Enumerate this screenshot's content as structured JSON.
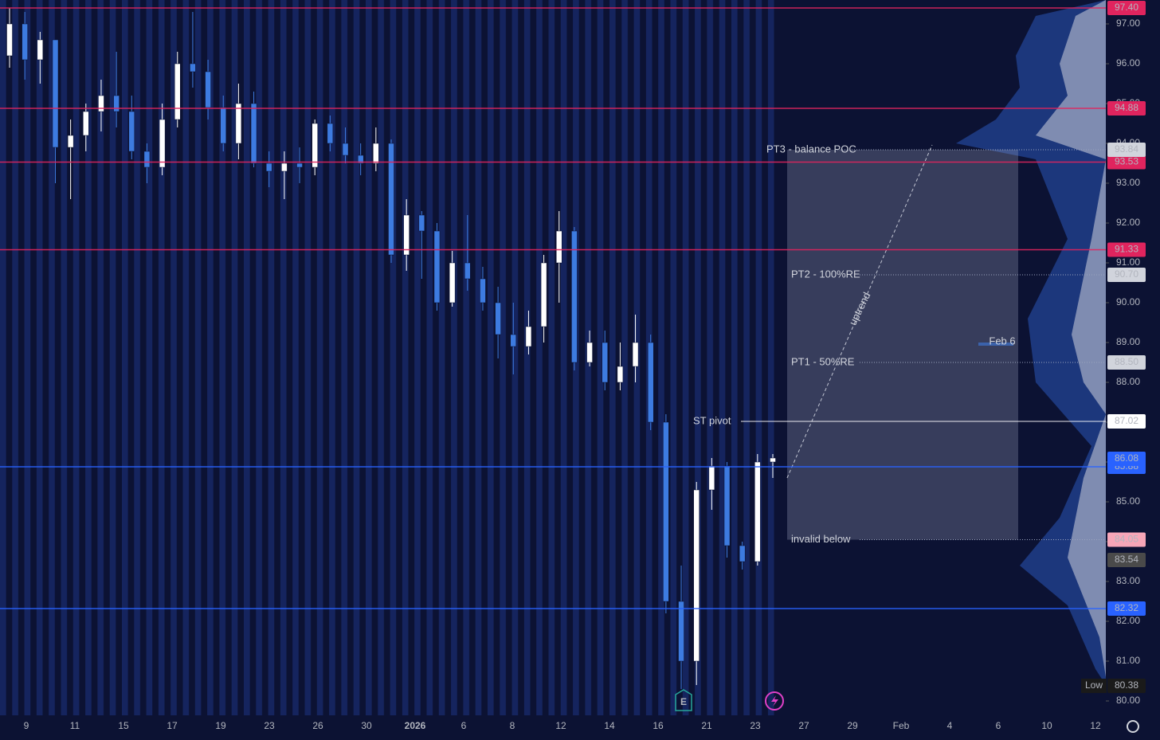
{
  "chart_data": {
    "type": "candlestick",
    "up_color": "#ffffff",
    "down_color": "#3d7be0",
    "ylim": [
      79.64,
      97.6
    ],
    "yticks": [
      {
        "value": 80,
        "label": "80.00"
      },
      {
        "value": 81,
        "label": "81.00"
      },
      {
        "value": 82,
        "label": "82.00"
      },
      {
        "value": 83,
        "label": "83.00"
      },
      {
        "value": 84,
        "label": "84.00"
      },
      {
        "value": 85,
        "label": "85.00"
      },
      {
        "value": 86,
        "label": "86.00"
      },
      {
        "value": 87,
        "label": "87.00"
      },
      {
        "value": 88,
        "label": "88.00"
      },
      {
        "value": 89,
        "label": "89.00"
      },
      {
        "value": 90,
        "label": "90.00"
      },
      {
        "value": 91,
        "label": "91.00"
      },
      {
        "value": 92,
        "label": "92.00"
      },
      {
        "value": 93,
        "label": "93.00"
      },
      {
        "value": 94,
        "label": "94.00"
      },
      {
        "value": 95,
        "label": "95.00"
      },
      {
        "value": 96,
        "label": "96.00"
      },
      {
        "value": 97,
        "label": "97.00"
      }
    ],
    "x_labels": [
      "9",
      "11",
      "15",
      "17",
      "19",
      "23",
      "26",
      "30",
      "2026",
      "6",
      "8",
      "12",
      "14",
      "16",
      "21",
      "23",
      "27",
      "29",
      "Feb",
      "4",
      "6",
      "10",
      "12"
    ],
    "open": [
      96.2,
      97.0,
      96.1,
      96.6,
      93.9,
      94.2,
      94.8,
      95.2,
      94.8,
      93.8,
      93.4,
      94.6,
      96.0,
      95.8,
      94.9,
      94.0,
      95.0,
      93.5,
      93.3,
      93.5,
      93.4,
      94.5,
      94.0,
      93.7,
      93.5,
      94.0,
      91.2,
      92.2,
      91.8,
      90.0,
      91.0,
      90.6,
      90.0,
      89.2,
      88.9,
      89.4,
      91.0,
      91.8,
      88.5,
      89.0,
      88.0,
      88.4,
      89.0,
      87.0,
      82.5,
      81.0,
      85.3,
      85.9,
      83.9,
      83.5,
      86.0
    ],
    "high": [
      97.4,
      97.3,
      96.8,
      96.6,
      94.6,
      95.0,
      95.6,
      96.3,
      95.2,
      94.0,
      95.0,
      96.3,
      97.3,
      96.1,
      95.2,
      95.5,
      95.3,
      93.8,
      93.8,
      93.9,
      94.6,
      94.7,
      94.4,
      94.0,
      94.4,
      94.1,
      92.6,
      92.3,
      92.0,
      91.3,
      92.2,
      90.9,
      90.4,
      90.0,
      89.8,
      91.2,
      92.3,
      91.9,
      89.3,
      89.3,
      89.0,
      89.7,
      89.2,
      87.2,
      83.4,
      85.5,
      86.1,
      86.0,
      84.0,
      86.2,
      86.2
    ],
    "low": [
      95.9,
      95.6,
      95.5,
      93.0,
      92.6,
      93.8,
      94.3,
      94.4,
      93.6,
      93.0,
      93.2,
      94.4,
      95.4,
      94.6,
      93.8,
      93.6,
      93.4,
      92.9,
      92.6,
      93.0,
      93.2,
      93.8,
      93.5,
      93.2,
      93.3,
      91.0,
      90.8,
      90.6,
      89.8,
      89.9,
      90.3,
      89.8,
      88.6,
      88.2,
      88.7,
      89.0,
      90.0,
      88.3,
      88.4,
      87.8,
      87.8,
      88.0,
      86.8,
      82.2,
      80.3,
      80.4,
      84.8,
      83.6,
      83.3,
      83.4,
      85.6
    ],
    "close": [
      97.0,
      96.1,
      96.6,
      93.9,
      94.2,
      94.8,
      95.2,
      94.8,
      93.8,
      93.4,
      94.6,
      96.0,
      95.8,
      94.9,
      94.0,
      95.0,
      93.5,
      93.3,
      93.5,
      93.4,
      94.5,
      94.0,
      93.7,
      93.5,
      94.0,
      91.2,
      92.2,
      91.8,
      90.0,
      91.0,
      90.6,
      90.0,
      89.2,
      88.9,
      89.4,
      91.0,
      91.8,
      88.5,
      89.0,
      88.0,
      88.4,
      89.0,
      87.0,
      82.5,
      81.0,
      85.3,
      85.9,
      83.9,
      83.5,
      86.0,
      86.1
    ],
    "levels": [
      {
        "value": 97.4,
        "label": "97.40",
        "color": "#e0245e",
        "line": "full"
      },
      {
        "value": 94.88,
        "label": "94.88",
        "color": "#e0245e",
        "line": "full"
      },
      {
        "value": 93.53,
        "label": "93.53",
        "color": "#e0245e",
        "line": "full"
      },
      {
        "value": 91.33,
        "label": "91.33",
        "color": "#e0245e",
        "line": "full"
      },
      {
        "value": 87.02,
        "label": "87.02",
        "color": "#ffffff",
        "line": "partial",
        "note": "ST pivot"
      },
      {
        "value": 85.88,
        "label": "85.88",
        "color": "#2962ff",
        "line": "full"
      },
      {
        "value": 82.32,
        "label": "82.32",
        "color": "#2962ff",
        "line": "full"
      }
    ],
    "markers": [
      {
        "value": 93.84,
        "label": "93.84",
        "color": "#d1d4dc",
        "note": "PT3 - balance POC"
      },
      {
        "value": 90.7,
        "label": "90.70",
        "color": "#d1d4dc",
        "note": "PT2 - 100%RE"
      },
      {
        "value": 88.5,
        "label": "88.50",
        "color": "#d1d4dc",
        "note": "PT1 - 50%RE"
      },
      {
        "value": 86.08,
        "label": "86.08",
        "color": "#2962ff"
      },
      {
        "value": 84.05,
        "label": "84.05",
        "color": "#f7a6b8",
        "note": "invalid below"
      },
      {
        "value": 83.54,
        "label": "83.54",
        "color": "#4a4a4a"
      },
      {
        "value": 80.38,
        "label": "80.38",
        "color": "#1a1a1a",
        "tag": "Low"
      }
    ],
    "trend_label": "uptrend",
    "date_note": "Feb 6",
    "event_marker": "E"
  }
}
